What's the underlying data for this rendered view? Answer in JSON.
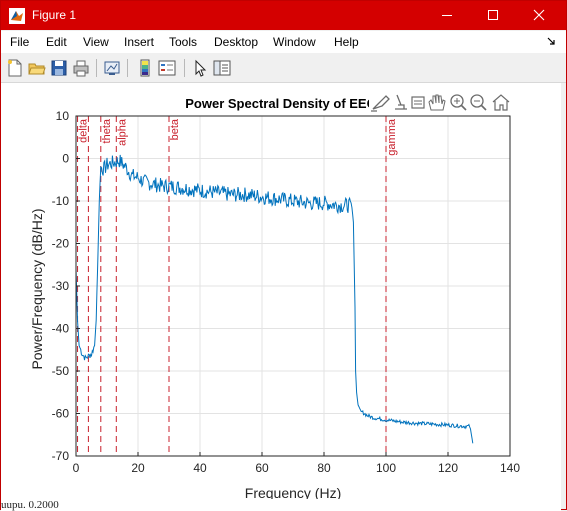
{
  "window": {
    "title": "Figure 1",
    "colors": {
      "titlebar": "#d40000",
      "trace": "#0072bd",
      "bandline": "#c8202c"
    }
  },
  "menu": [
    "File",
    "Edit",
    "View",
    "Insert",
    "Tools",
    "Desktop",
    "Window",
    "Help"
  ],
  "toolbar_icons": [
    "new-figure-icon",
    "open-file-icon",
    "save-icon",
    "print-icon",
    "link-plot-icon",
    "insert-colorbar-icon",
    "insert-legend-icon",
    "edit-plot-arrow-icon",
    "property-inspector-icon"
  ],
  "axes_toolbar_icons": [
    "brush-icon",
    "data-tips-icon",
    "rotate-icon",
    "pan-icon",
    "zoom-in-icon",
    "zoom-out-icon",
    "home-icon"
  ],
  "status_text": "uupu. 0.2000",
  "chart_data": {
    "type": "line",
    "title": "Power Spectral Density of EEG",
    "xlabel": "Frequency (Hz)",
    "ylabel": "Power/Frequency (dB/Hz)",
    "xlim": [
      0,
      140
    ],
    "ylim": [
      -70,
      10
    ],
    "xticks": [
      0,
      20,
      40,
      60,
      80,
      100,
      120,
      140
    ],
    "yticks": [
      10,
      0,
      -10,
      -20,
      -30,
      -40,
      -50,
      -60,
      -70
    ],
    "grid": true,
    "band_lines": [
      {
        "label": "delta",
        "x": 0.5
      },
      {
        "label": "",
        "x": 4
      },
      {
        "label": "theta",
        "x": 8
      },
      {
        "label": "alpha",
        "x": 13
      },
      {
        "label": "beta",
        "x": 30
      },
      {
        "label": "gamma",
        "x": 100
      }
    ],
    "series": [
      {
        "x": [
          0,
          0.5,
          1,
          1.5,
          2,
          2.5,
          3,
          4,
          5,
          6,
          6.5,
          7,
          7.5,
          8,
          9,
          10,
          12,
          14,
          16,
          18,
          20,
          22,
          25,
          28,
          30,
          35,
          40,
          45,
          50,
          55,
          60,
          65,
          70,
          75,
          80,
          85,
          88,
          89,
          89.5,
          90,
          90.2,
          90.5,
          91,
          92,
          94,
          96,
          100,
          105,
          110,
          115,
          120,
          125,
          127,
          128
        ],
        "y": [
          -26,
          -38,
          -44,
          -45,
          -46,
          -46.5,
          -47,
          -46.5,
          -46,
          -44,
          -38,
          -25,
          -10,
          -2,
          -2.5,
          -1.5,
          -1,
          -0.5,
          -2,
          -4,
          -4.5,
          -5.5,
          -6,
          -6.5,
          -6.5,
          -7,
          -7.5,
          -8,
          -8.5,
          -8.5,
          -9,
          -9.5,
          -10,
          -10.5,
          -10.5,
          -11,
          -11,
          -11.5,
          -15,
          -35,
          -50,
          -55,
          -58,
          -59.5,
          -60.5,
          -61,
          -61.5,
          -62,
          -62.3,
          -62.5,
          -62.7,
          -63,
          -63,
          -67
        ]
      }
    ]
  }
}
